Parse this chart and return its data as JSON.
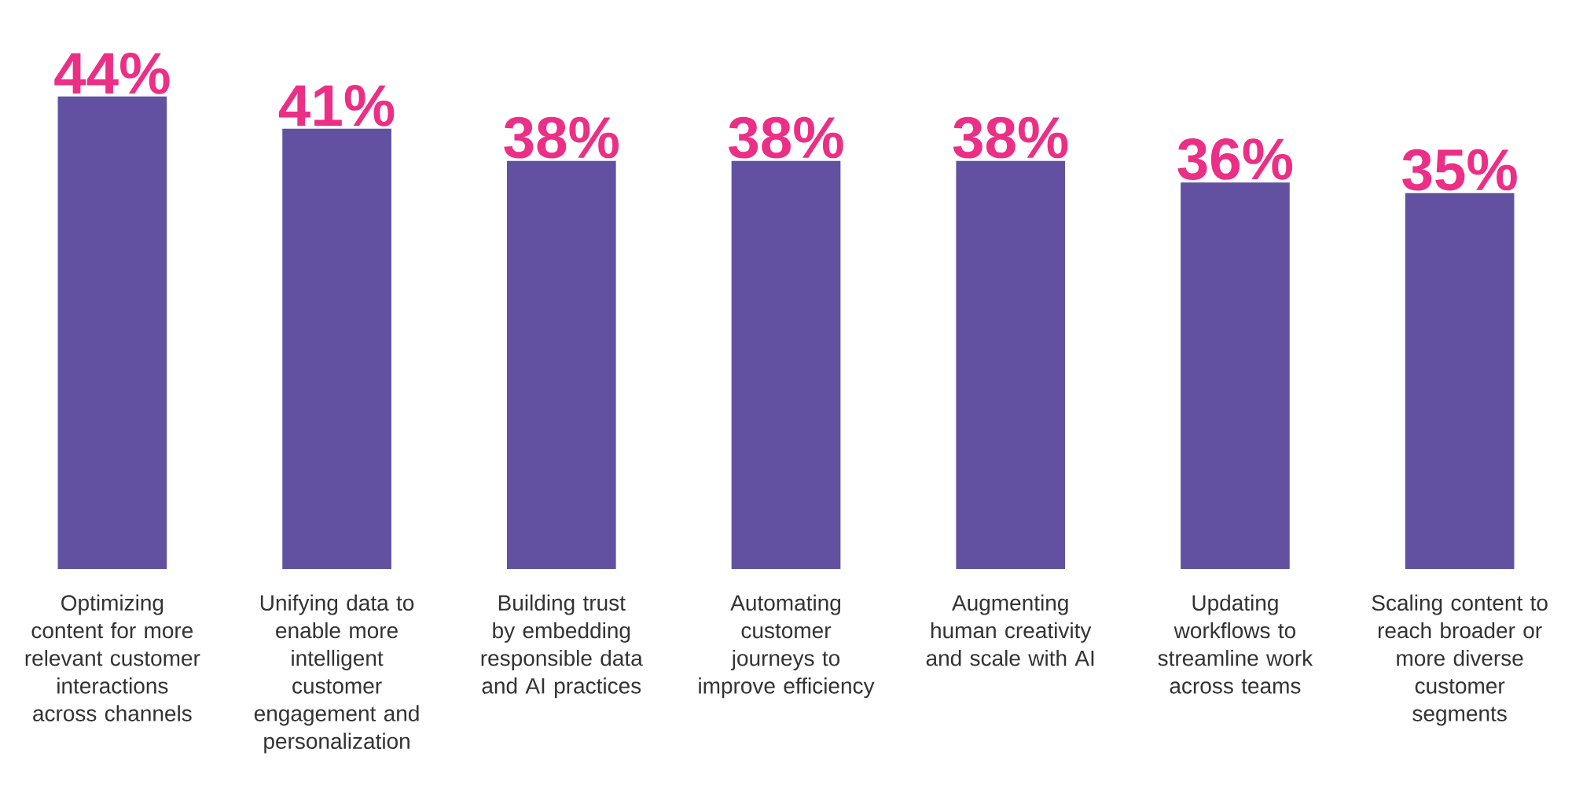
{
  "chart_data": {
    "type": "bar",
    "categories": [
      "Optimizing content for more relevant customer interactions across channels",
      "Unifying data to enable more intelligent customer engagement and personalization",
      "Building trust by embedding responsible data and AI practices",
      "Automating customer journeys to improve efficiency",
      "Augmenting human creativity and scale with AI",
      "Updating workflows to streamline work across teams",
      "Scaling content to reach broader or more diverse customer segments"
    ],
    "values": [
      44,
      41,
      38,
      38,
      38,
      36,
      35
    ],
    "value_labels": [
      "44%",
      "41%",
      "38%",
      "38%",
      "38%",
      "36%",
      "35%"
    ],
    "color": "#6251a1"
  }
}
